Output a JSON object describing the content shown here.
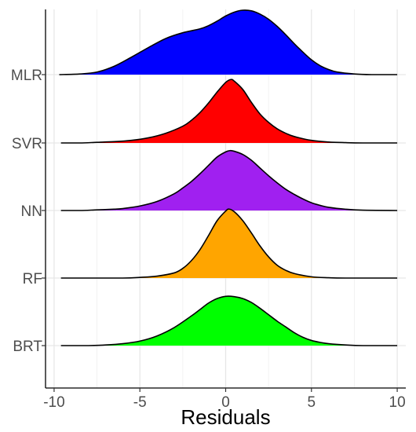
{
  "chart_data": {
    "type": "ridgeline",
    "title": "",
    "xlabel": "Residuals",
    "ylabel": "",
    "xlim": [
      -10.5,
      10.5
    ],
    "x_ticks": [
      -10,
      -5,
      0,
      5,
      10
    ],
    "x_tick_labels": [
      "-10",
      "-5",
      "0",
      "5",
      "10"
    ],
    "grid": true,
    "legend": "none",
    "series": [
      {
        "label": "MLR",
        "color": "#0000FF",
        "x_range": [
          -9.7,
          10
        ],
        "curve": [
          [
            -9.7,
            0.0
          ],
          [
            -8.5,
            0.01
          ],
          [
            -7.5,
            0.04
          ],
          [
            -6.5,
            0.13
          ],
          [
            -5.5,
            0.27
          ],
          [
            -4.5,
            0.42
          ],
          [
            -3.5,
            0.56
          ],
          [
            -2.5,
            0.65
          ],
          [
            -1.5,
            0.71
          ],
          [
            -1,
            0.76
          ],
          [
            -0.5,
            0.83
          ],
          [
            0,
            0.91
          ],
          [
            0.5,
            0.97
          ],
          [
            1,
            1.0
          ],
          [
            1.5,
            0.99
          ],
          [
            2,
            0.94
          ],
          [
            2.5,
            0.86
          ],
          [
            3,
            0.75
          ],
          [
            3.5,
            0.62
          ],
          [
            4,
            0.48
          ],
          [
            4.5,
            0.35
          ],
          [
            5,
            0.23
          ],
          [
            5.5,
            0.14
          ],
          [
            6,
            0.08
          ],
          [
            6.5,
            0.04
          ],
          [
            7.5,
            0.01
          ],
          [
            8.5,
            0.0
          ],
          [
            10,
            0.0
          ]
        ]
      },
      {
        "label": "SVR",
        "color": "#FF0000",
        "x_range": [
          -9.6,
          10
        ],
        "curve": [
          [
            -9.6,
            0.0
          ],
          [
            -8.5,
            0.0
          ],
          [
            -7.5,
            0.01
          ],
          [
            -6.5,
            0.02
          ],
          [
            -5.5,
            0.04
          ],
          [
            -4.5,
            0.08
          ],
          [
            -3.5,
            0.15
          ],
          [
            -2.5,
            0.26
          ],
          [
            -2,
            0.35
          ],
          [
            -1.5,
            0.47
          ],
          [
            -1,
            0.62
          ],
          [
            -0.5,
            0.79
          ],
          [
            0,
            0.94
          ],
          [
            0.3,
            0.985
          ],
          [
            0.5,
            0.96
          ],
          [
            1,
            0.83
          ],
          [
            1.5,
            0.63
          ],
          [
            2,
            0.45
          ],
          [
            2.5,
            0.32
          ],
          [
            3,
            0.22
          ],
          [
            3.5,
            0.15
          ],
          [
            4,
            0.1
          ],
          [
            5,
            0.04
          ],
          [
            6,
            0.015
          ],
          [
            7,
            0.005
          ],
          [
            8,
            0.0
          ],
          [
            10,
            0.0
          ]
        ]
      },
      {
        "label": "NN",
        "color": "#A020F0",
        "x_range": [
          -9.6,
          10
        ],
        "curve": [
          [
            -9.6,
            0.0
          ],
          [
            -8.5,
            0.0
          ],
          [
            -7.5,
            0.01
          ],
          [
            -6.5,
            0.02
          ],
          [
            -6,
            0.03
          ],
          [
            -5,
            0.07
          ],
          [
            -4,
            0.14
          ],
          [
            -3,
            0.26
          ],
          [
            -2.5,
            0.35
          ],
          [
            -2,
            0.45
          ],
          [
            -1.5,
            0.57
          ],
          [
            -1,
            0.7
          ],
          [
            -0.5,
            0.83
          ],
          [
            0,
            0.91
          ],
          [
            0.25,
            0.93
          ],
          [
            0.5,
            0.92
          ],
          [
            1,
            0.87
          ],
          [
            1.5,
            0.78
          ],
          [
            2,
            0.66
          ],
          [
            2.5,
            0.54
          ],
          [
            3,
            0.43
          ],
          [
            3.5,
            0.33
          ],
          [
            4,
            0.25
          ],
          [
            4.5,
            0.18
          ],
          [
            5,
            0.12
          ],
          [
            5.5,
            0.08
          ],
          [
            6,
            0.05
          ],
          [
            7,
            0.02
          ],
          [
            8,
            0.005
          ],
          [
            10,
            0.0
          ]
        ]
      },
      {
        "label": "RF",
        "color": "#FFA500",
        "x_range": [
          -9.6,
          10
        ],
        "curve": [
          [
            -9.6,
            0.0
          ],
          [
            -8,
            0.0
          ],
          [
            -6,
            0.0
          ],
          [
            -5,
            0.01
          ],
          [
            -4,
            0.03
          ],
          [
            -3,
            0.08
          ],
          [
            -2.5,
            0.15
          ],
          [
            -2,
            0.27
          ],
          [
            -1.5,
            0.44
          ],
          [
            -1,
            0.66
          ],
          [
            -0.5,
            0.89
          ],
          [
            0,
            1.04
          ],
          [
            0.2,
            1.07
          ],
          [
            0.5,
            1.03
          ],
          [
            1,
            0.89
          ],
          [
            1.5,
            0.7
          ],
          [
            2,
            0.5
          ],
          [
            2.5,
            0.33
          ],
          [
            3,
            0.2
          ],
          [
            3.5,
            0.12
          ],
          [
            4,
            0.07
          ],
          [
            5,
            0.02
          ],
          [
            6,
            0.005
          ],
          [
            7,
            0.0
          ],
          [
            10,
            0.0
          ]
        ]
      },
      {
        "label": "BRT",
        "color": "#00FF00",
        "x_range": [
          -9.6,
          10
        ],
        "curve": [
          [
            -9.6,
            0.0
          ],
          [
            -8,
            0.0
          ],
          [
            -7,
            0.01
          ],
          [
            -6,
            0.03
          ],
          [
            -5,
            0.07
          ],
          [
            -4,
            0.15
          ],
          [
            -3,
            0.28
          ],
          [
            -2,
            0.46
          ],
          [
            -1.5,
            0.56
          ],
          [
            -1,
            0.66
          ],
          [
            -0.5,
            0.73
          ],
          [
            0,
            0.765
          ],
          [
            0.5,
            0.76
          ],
          [
            1,
            0.73
          ],
          [
            1.5,
            0.67
          ],
          [
            2,
            0.58
          ],
          [
            2.5,
            0.48
          ],
          [
            3,
            0.38
          ],
          [
            3.5,
            0.29
          ],
          [
            4,
            0.2
          ],
          [
            4.5,
            0.13
          ],
          [
            5,
            0.08
          ],
          [
            5.5,
            0.05
          ],
          [
            6,
            0.03
          ],
          [
            7,
            0.01
          ],
          [
            8,
            0.0
          ],
          [
            10,
            0.0
          ]
        ]
      }
    ]
  }
}
